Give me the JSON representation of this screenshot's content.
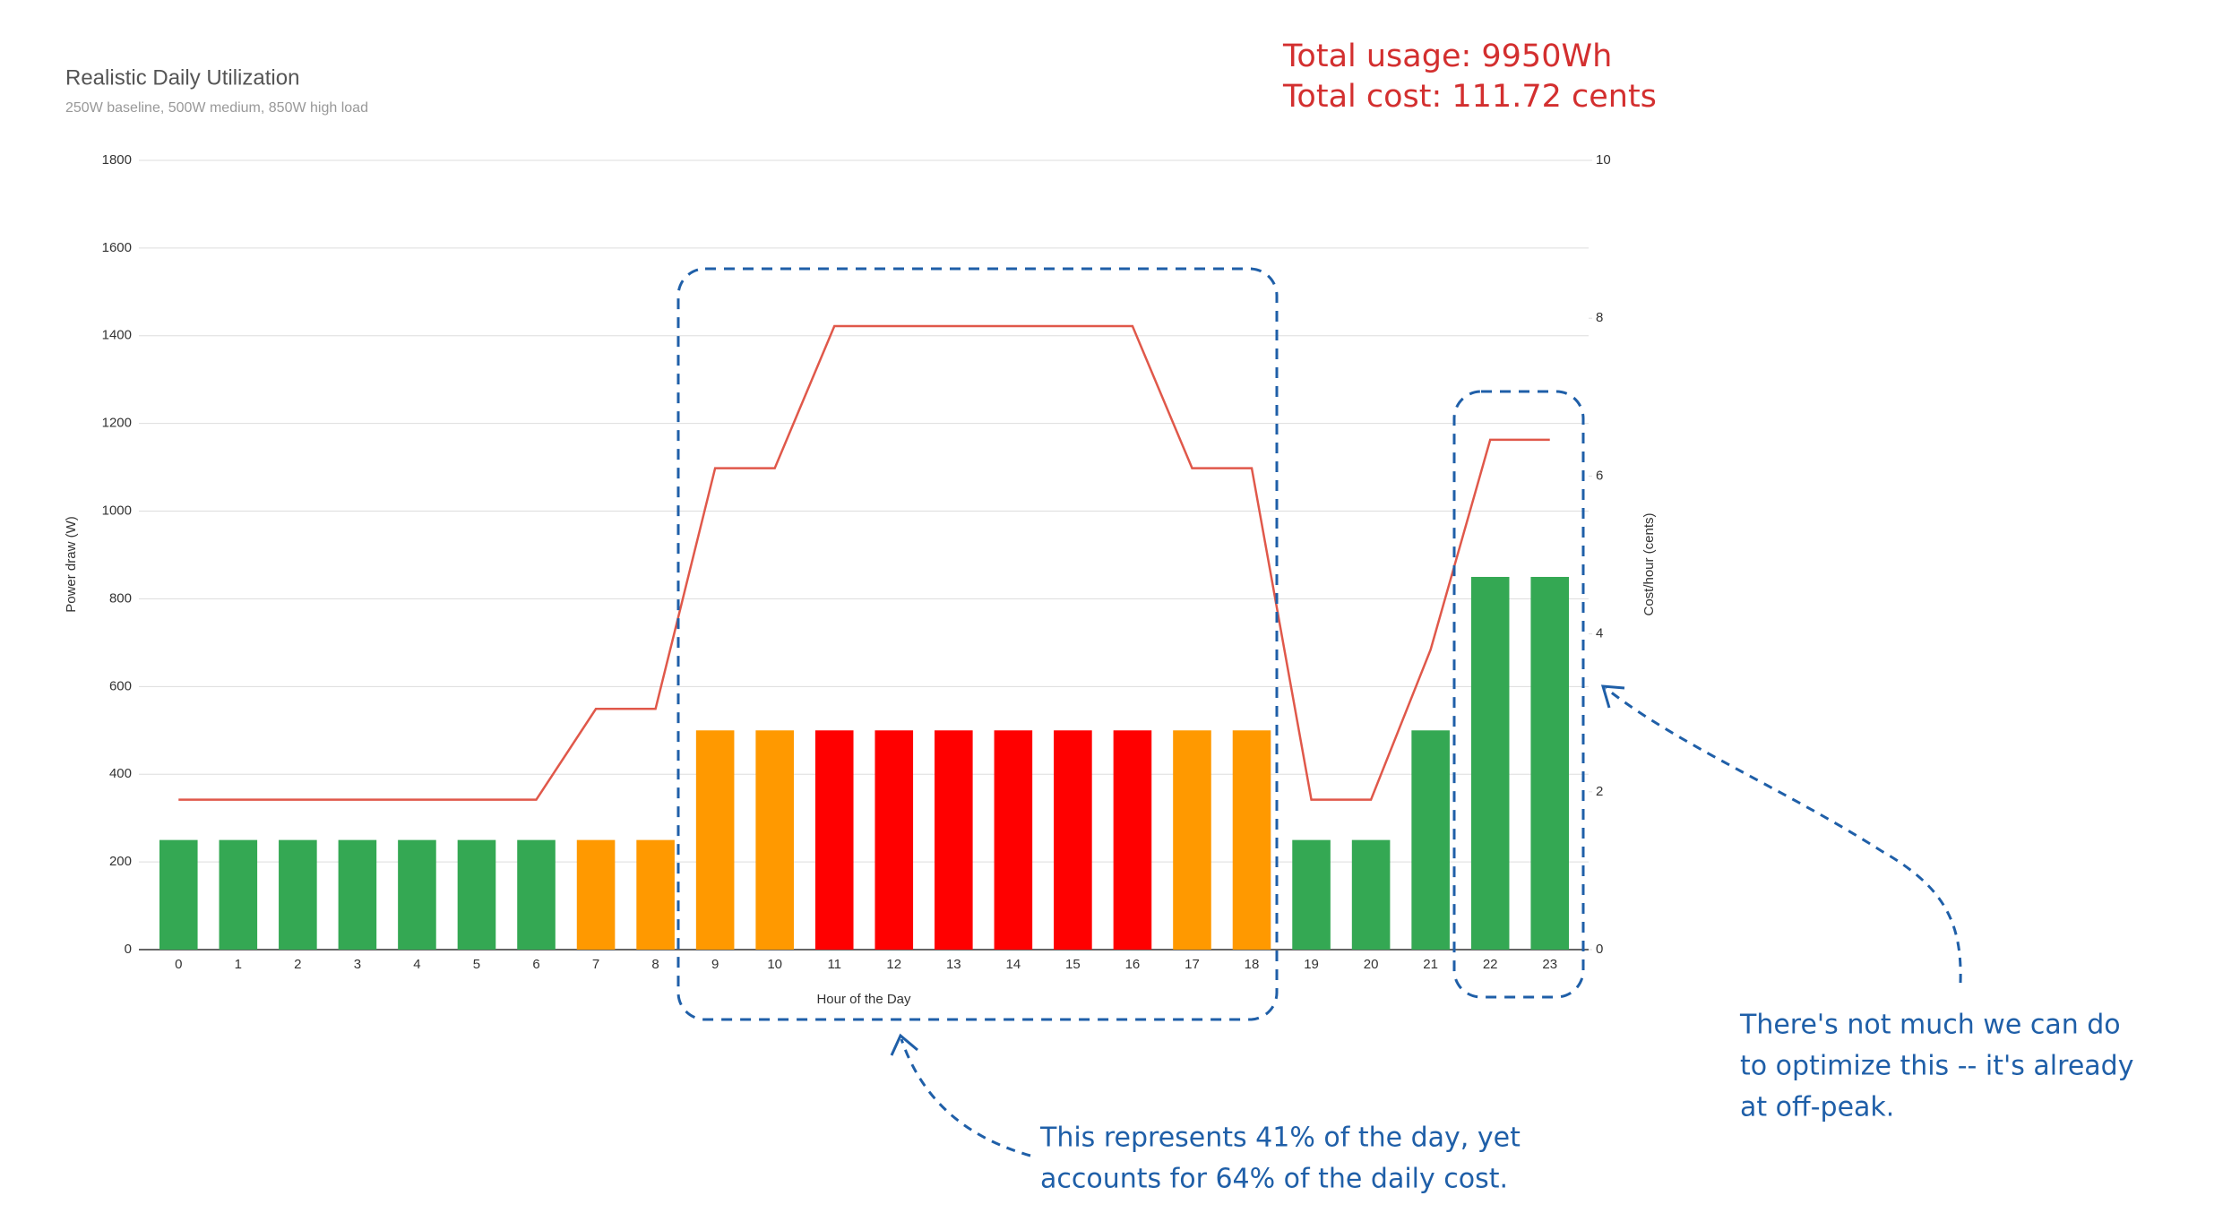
{
  "chart_data": {
    "type": "combo",
    "title": "Realistic Daily Utilization",
    "subtitle": "250W baseline, 500W medium, 850W high load",
    "x_label": "Hour of the Day",
    "y_label": "Power draw (W)",
    "y2_label": "Cost/hour (cents)",
    "categories": [
      "0",
      "1",
      "2",
      "3",
      "4",
      "5",
      "6",
      "7",
      "8",
      "9",
      "10",
      "11",
      "12",
      "13",
      "14",
      "15",
      "16",
      "17",
      "18",
      "19",
      "20",
      "21",
      "22",
      "23"
    ],
    "series": [
      {
        "type": "bar",
        "values": [
          250,
          250,
          250,
          250,
          250,
          250,
          250,
          250,
          250,
          500,
          500,
          500,
          500,
          500,
          500,
          500,
          500,
          500,
          500,
          250,
          250,
          500,
          850,
          850
        ],
        "colors": [
          "#34a853",
          "#34a853",
          "#34a853",
          "#34a853",
          "#34a853",
          "#34a853",
          "#34a853",
          "#ff9900",
          "#ff9900",
          "#ff9900",
          "#ff9900",
          "#ff0000",
          "#ff0000",
          "#ff0000",
          "#ff0000",
          "#ff0000",
          "#ff0000",
          "#ff9900",
          "#ff9900",
          "#34a853",
          "#34a853",
          "#34a853",
          "#34a853",
          "#34a853"
        ]
      },
      {
        "type": "line",
        "axis": "y2",
        "color": "#e0584a",
        "values": [
          1.9,
          1.9,
          1.9,
          1.9,
          1.9,
          1.9,
          1.9,
          3.05,
          3.05,
          6.1,
          6.1,
          7.9,
          7.9,
          7.9,
          7.9,
          7.9,
          7.9,
          6.1,
          6.1,
          1.9,
          1.9,
          3.8,
          6.46,
          6.46
        ]
      }
    ],
    "ylim": [
      0,
      1800
    ],
    "yticks": [
      0,
      200,
      400,
      600,
      800,
      1000,
      1200,
      1400,
      1600,
      1800
    ],
    "y2lim": [
      0,
      10
    ],
    "y2ticks": [
      0,
      2,
      4,
      6,
      8,
      10
    ],
    "grid": true,
    "annotations": [
      {
        "color": "#d32f2f",
        "lines": [
          "Total usage: 9950Wh",
          "Total cost: 111.72 cents"
        ]
      },
      {
        "color": "#1f5fa8",
        "lines": [
          "This represents 41% of the day, yet",
          "accounts for 64% of the daily cost."
        ]
      },
      {
        "color": "#1f5fa8",
        "lines": [
          "There's not much we can do",
          "to optimize this -- it's already",
          "at off-peak."
        ]
      }
    ]
  }
}
